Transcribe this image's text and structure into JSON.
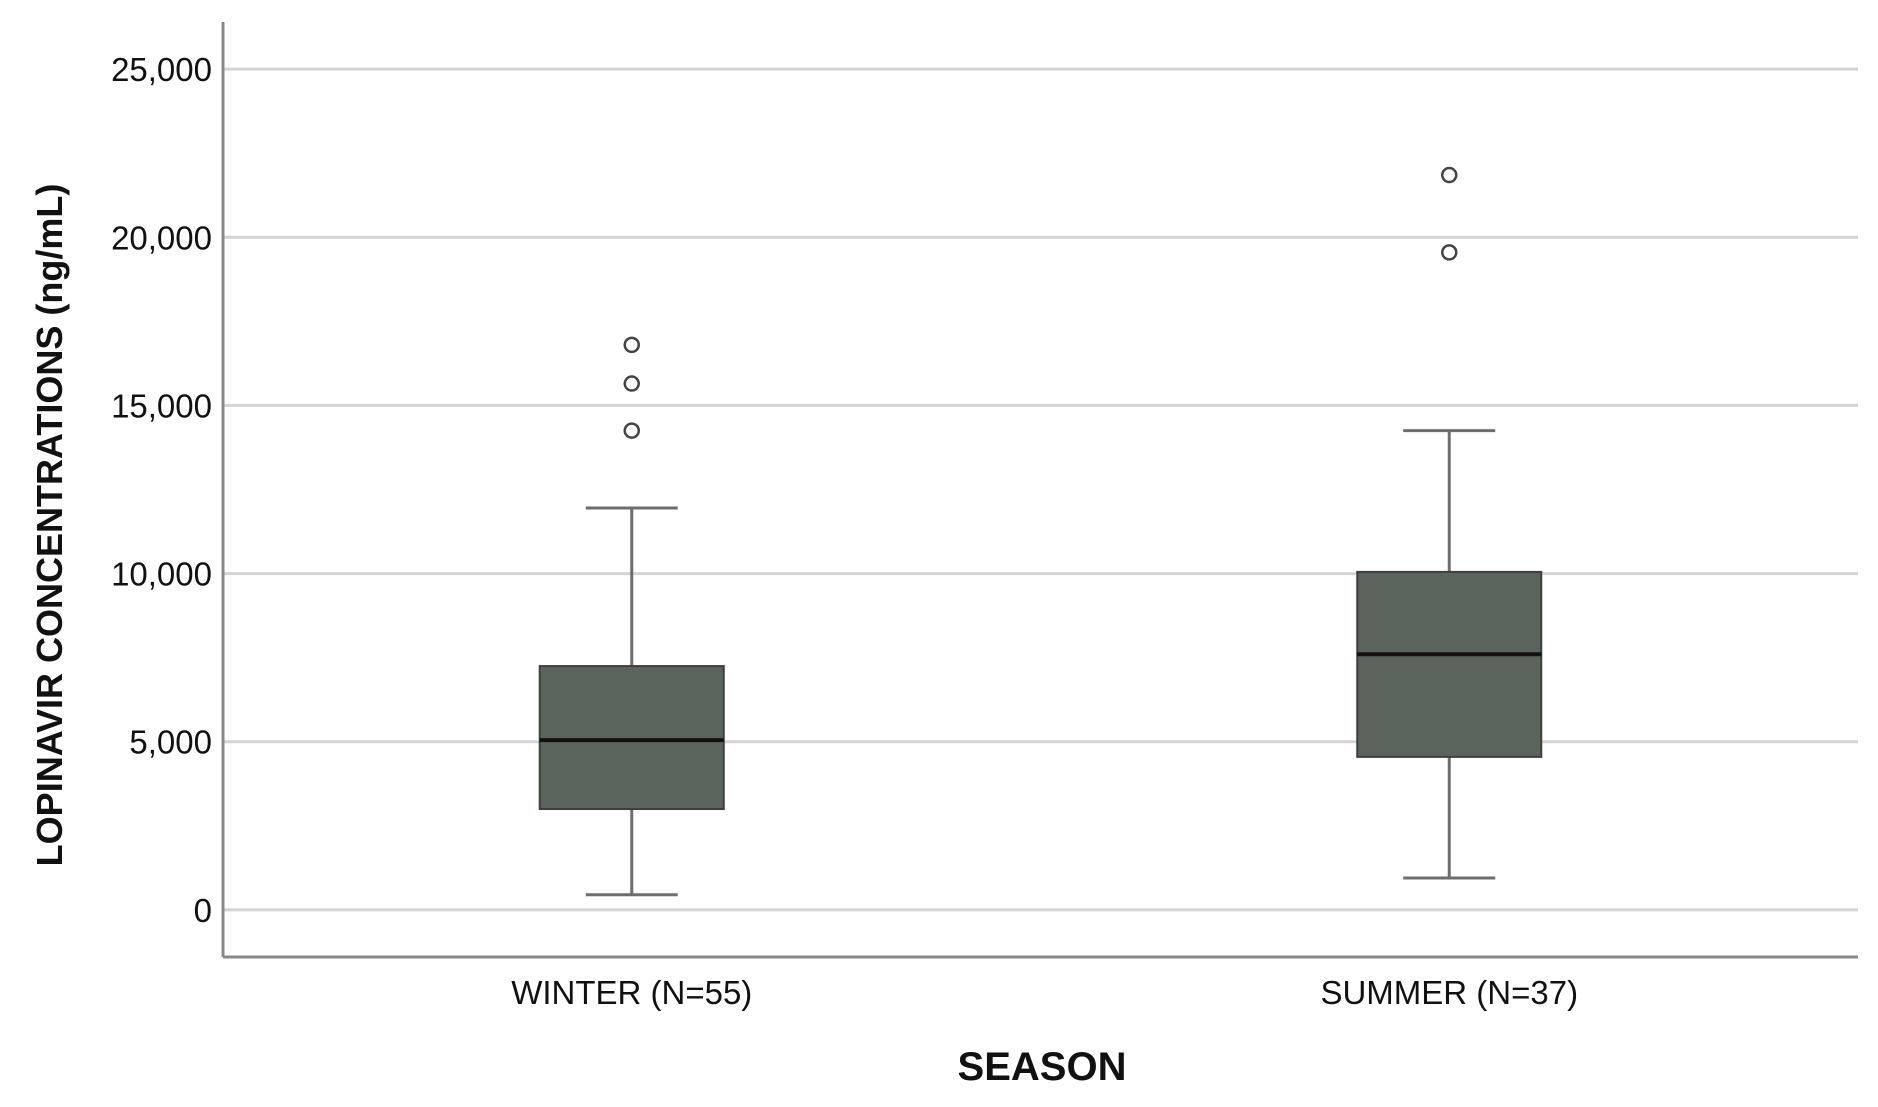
{
  "chart_data": {
    "type": "box",
    "title": "",
    "xlabel": "SEASON",
    "ylabel": "LOPINAVIR CONCENTRATIONS (ng/mL)",
    "ylim": [
      -1400,
      26400
    ],
    "yticks": [
      0,
      5000,
      10000,
      15000,
      20000,
      25000
    ],
    "ytick_labels": [
      "0",
      "5,000",
      "10,000",
      "15,000",
      "20,000",
      "25,000"
    ],
    "grid": true,
    "box_color": "#5a645c",
    "categories": [
      "WINTER (N=55)",
      "SUMMER (N=37)"
    ],
    "boxes": [
      {
        "label": "WINTER (N=55)",
        "whisker_low": 450,
        "q1": 3000,
        "median": 5050,
        "q3": 7250,
        "whisker_high": 11950,
        "outliers": [
          14250,
          15650,
          16800
        ]
      },
      {
        "label": "SUMMER (N=37)",
        "whisker_low": 950,
        "q1": 4550,
        "median": 7600,
        "q3": 10050,
        "whisker_high": 14250,
        "outliers": [
          19550,
          21850
        ]
      }
    ]
  }
}
